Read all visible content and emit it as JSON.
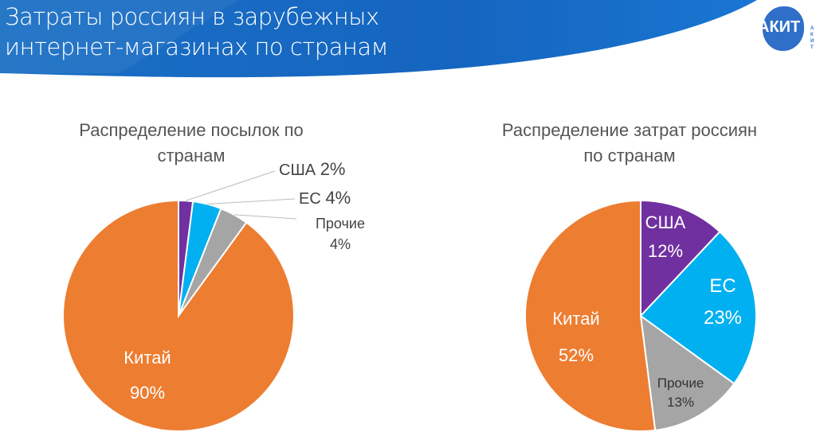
{
  "header": {
    "title_line1": "Затраты россиян в зарубежных",
    "title_line2": "интернет-магазинах по странам",
    "logo_text": "АКИТ"
  },
  "colors": {
    "China": "#ED7D31",
    "USA": "#7030A0",
    "EU": "#00B0F0",
    "Other": "#A5A5A5"
  },
  "chart_data": [
    {
      "type": "pie",
      "title_line1": "Распределение посылок по",
      "title_line2": "странам",
      "slices": [
        {
          "label": "США",
          "value": 2,
          "display": "2%"
        },
        {
          "label": "ЕС",
          "value": 4,
          "display": "4%"
        },
        {
          "label": "Прочие",
          "value": 4,
          "display": "4%"
        },
        {
          "label": "Китай",
          "value": 90,
          "display": "90%"
        }
      ]
    },
    {
      "type": "pie",
      "title_line1": "Распределение  затрат россиян",
      "title_line2": "по странам",
      "slices": [
        {
          "label": "США",
          "value": 12,
          "display": "12%"
        },
        {
          "label": "ЕС",
          "value": 23,
          "display": "23%"
        },
        {
          "label": "Прочие",
          "value": 13,
          "display": "13%"
        },
        {
          "label": "Китай",
          "value": 52,
          "display": "52%"
        }
      ]
    }
  ]
}
